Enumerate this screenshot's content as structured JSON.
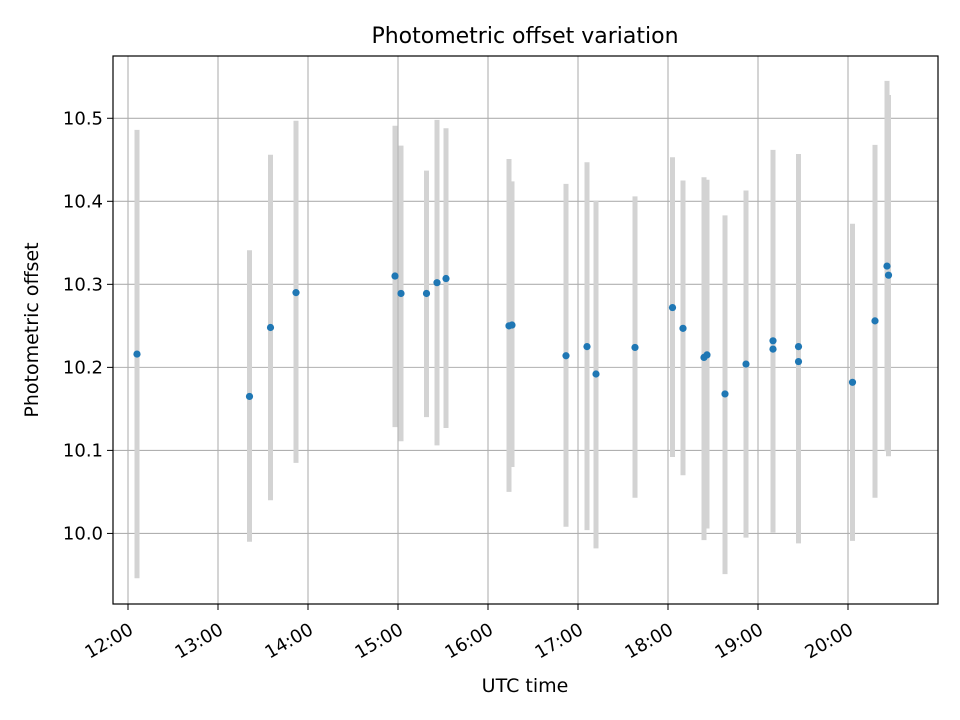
{
  "chart_data": {
    "type": "scatter",
    "title": "Photometric offset variation",
    "xlabel": "UTC time",
    "ylabel": "Photometric offset",
    "x_axis_kind": "time",
    "x_ticks": [
      "12:00",
      "13:00",
      "14:00",
      "15:00",
      "16:00",
      "17:00",
      "18:00",
      "19:00",
      "20:00"
    ],
    "x_range": [
      "11:50",
      "21:00"
    ],
    "y_ticks": [
      "10.0",
      "10.1",
      "10.2",
      "10.3",
      "10.4",
      "10.5"
    ],
    "ylim": [
      9.915,
      10.575
    ],
    "grid": true,
    "point_color": "#1f77b4",
    "errorbar_color": "#d3d3d3",
    "points": [
      {
        "x": "12:06",
        "y": 10.216,
        "lo": 9.946,
        "hi": 10.486
      },
      {
        "x": "13:21",
        "y": 10.165,
        "lo": 9.99,
        "hi": 10.341
      },
      {
        "x": "13:35",
        "y": 10.248,
        "lo": 10.04,
        "hi": 10.456
      },
      {
        "x": "13:52",
        "y": 10.29,
        "lo": 10.085,
        "hi": 10.497
      },
      {
        "x": "14:58",
        "y": 10.31,
        "lo": 10.128,
        "hi": 10.491
      },
      {
        "x": "15:02",
        "y": 10.289,
        "lo": 10.111,
        "hi": 10.467
      },
      {
        "x": "15:19",
        "y": 10.289,
        "lo": 10.14,
        "hi": 10.437
      },
      {
        "x": "15:26",
        "y": 10.302,
        "lo": 10.106,
        "hi": 10.498
      },
      {
        "x": "15:32",
        "y": 10.307,
        "lo": 10.127,
        "hi": 10.488
      },
      {
        "x": "16:14",
        "y": 10.25,
        "lo": 10.05,
        "hi": 10.451
      },
      {
        "x": "16:16",
        "y": 10.251,
        "lo": 10.08,
        "hi": 10.424
      },
      {
        "x": "16:52",
        "y": 10.214,
        "lo": 10.008,
        "hi": 10.421
      },
      {
        "x": "17:06",
        "y": 10.225,
        "lo": 10.004,
        "hi": 10.447
      },
      {
        "x": "17:12",
        "y": 10.192,
        "lo": 9.982,
        "hi": 10.401
      },
      {
        "x": "17:38",
        "y": 10.224,
        "lo": 10.043,
        "hi": 10.406
      },
      {
        "x": "18:03",
        "y": 10.272,
        "lo": 10.092,
        "hi": 10.453
      },
      {
        "x": "18:10",
        "y": 10.247,
        "lo": 10.07,
        "hi": 10.425
      },
      {
        "x": "18:24",
        "y": 10.212,
        "lo": 9.992,
        "hi": 10.429
      },
      {
        "x": "18:26",
        "y": 10.215,
        "lo": 10.006,
        "hi": 10.426
      },
      {
        "x": "18:38",
        "y": 10.168,
        "lo": 9.951,
        "hi": 10.383
      },
      {
        "x": "18:52",
        "y": 10.204,
        "lo": 9.995,
        "hi": 10.413
      },
      {
        "x": "19:10",
        "y": 10.232,
        "lo": 10.003,
        "hi": 10.462
      },
      {
        "x": "19:10",
        "y": 10.222,
        "lo": 10.001,
        "hi": 10.442
      },
      {
        "x": "19:27",
        "y": 10.225,
        "lo": 9.994,
        "hi": 10.457
      },
      {
        "x": "19:27",
        "y": 10.207,
        "lo": 9.988,
        "hi": 10.427
      },
      {
        "x": "20:03",
        "y": 10.182,
        "lo": 9.991,
        "hi": 10.373
      },
      {
        "x": "20:18",
        "y": 10.256,
        "lo": 10.043,
        "hi": 10.468
      },
      {
        "x": "20:26",
        "y": 10.322,
        "lo": 10.099,
        "hi": 10.545
      },
      {
        "x": "20:27",
        "y": 10.311,
        "lo": 10.093,
        "hi": 10.528
      }
    ]
  }
}
